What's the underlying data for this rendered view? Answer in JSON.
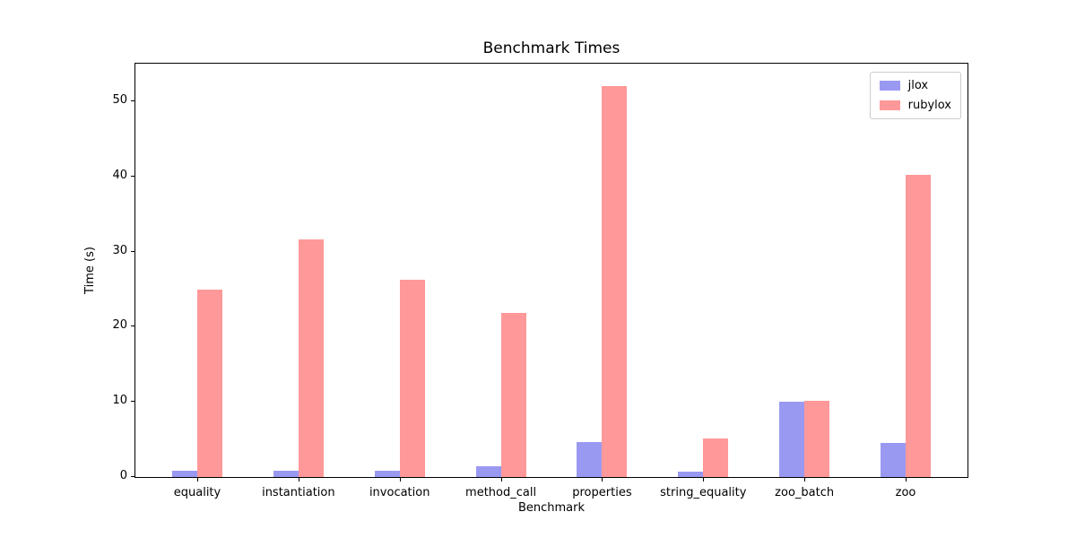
{
  "chart_data": {
    "type": "bar",
    "title": "Benchmark Times",
    "xlabel": "Benchmark",
    "ylabel": "Time (s)",
    "categories": [
      "equality",
      "instantiation",
      "invocation",
      "method_call",
      "properties",
      "string_equality",
      "zoo_batch",
      "zoo"
    ],
    "series": [
      {
        "name": "jlox",
        "color": "#9a99f2",
        "values": [
          0.9,
          0.9,
          0.9,
          1.4,
          4.6,
          0.7,
          10.0,
          4.5
        ]
      },
      {
        "name": "rubylox",
        "color": "#ff9898",
        "values": [
          25.0,
          31.6,
          26.3,
          21.8,
          52.0,
          5.1,
          10.2,
          40.2
        ]
      }
    ],
    "ylim": [
      0,
      55
    ],
    "yticks": [
      0,
      10,
      20,
      30,
      40,
      50
    ],
    "legend_position": "upper right",
    "grid": false,
    "axis_color": "#000000",
    "background_color": "#ffffff"
  }
}
